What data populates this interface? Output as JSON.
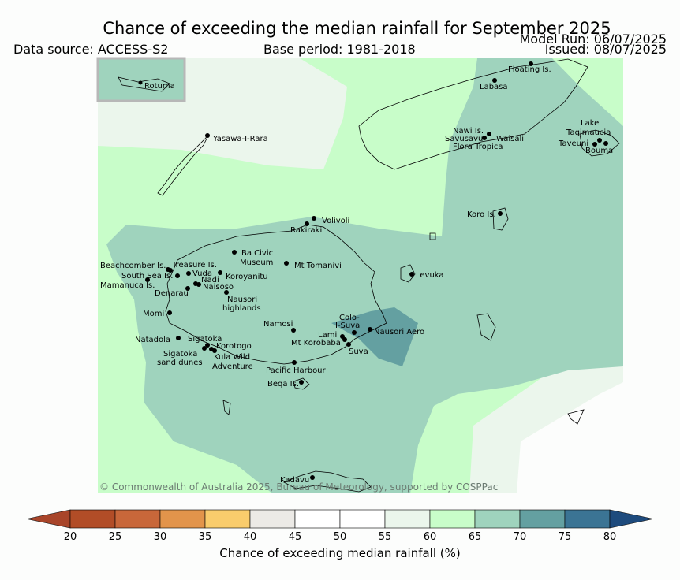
{
  "header": {
    "title": "Chance of exceeding the median rainfall for September 2025",
    "data_source": "Data source: ACCESS-S2",
    "base_period": "Base period: 1981-2018",
    "model_run": "Model Run: 06/07/2025",
    "issued": "Issued: 08/07/2025"
  },
  "inset": {
    "label": "Rotuma"
  },
  "places": {
    "floating": "Floating Is.",
    "labasa": "Labasa",
    "yasawa": "Yasawa-I-Rara",
    "nawi": "Nawi Is.",
    "savusavu": "Savusavu",
    "waisali": "Waisali",
    "flora": "Flora Tropica",
    "lake": "Lake",
    "tagimaucia": "Tagimaucia",
    "taveuni": "Taveuni",
    "bouma": "Bouma",
    "koro": "Koro Is.",
    "volivoli": "Volivoli",
    "rakiraki": "Rakiraki",
    "ba_civic": "Ba Civic",
    "museum": "Museum",
    "mt_tomanivi": "Mt Tomanivi",
    "beachcomber": "Beachcomber Is.",
    "treasure": "Treasure Is.",
    "vuda": "Vuda",
    "koroyanitu": "Koroyanitu",
    "south_sea": "South Sea Is.",
    "nadi": "Nadi",
    "mamanuca": "Mamanuca Is.",
    "naisoso": "Naisoso",
    "denarau": "Denarau",
    "nausori_h": "Nausori",
    "highlands": "highlands",
    "levuka": "Levuka",
    "momi": "Momi",
    "namosi": "Namosi",
    "colo": "Colo-",
    "i_suva": "I-Suva",
    "nausori_aero": "Nausori Aero",
    "lami": "Lami",
    "mt_korobaba": "Mt Korobaba",
    "suva": "Suva",
    "natadola": "Natadola",
    "sigatoka": "Sigatoka",
    "korotogo": "Korotogo",
    "sigatoka2": "Sigatoka",
    "sand_dunes": "sand dunes",
    "kula": "Kula Wild",
    "adventure": "Adventure",
    "pacific": "Pacific Harbour",
    "beqa": "Beqa Is.",
    "kadavu": "Kadavu"
  },
  "copyright": "© Commonwealth of Australia 2025, Bureau of Meteorology, supported by COSPPac",
  "legend": {
    "label": "Chance of exceeding median rainfall (%)",
    "ticks": [
      "20",
      "25",
      "30",
      "35",
      "40",
      "45",
      "50",
      "55",
      "60",
      "65",
      "70",
      "75",
      "80"
    ],
    "colors": [
      "#a8452a",
      "#b24d27",
      "#c8673a",
      "#e2944b",
      "#f9cc6c",
      "#eceae6",
      "#ffffff",
      "#ffffff",
      "#ebf6ec",
      "#c8fdc9",
      "#9fd3bd",
      "#64a0a1",
      "#3b7494",
      "#1e4b7d"
    ]
  }
}
